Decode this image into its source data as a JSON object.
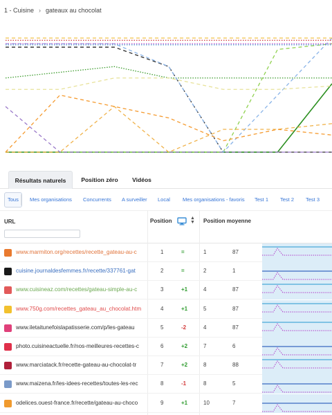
{
  "breadcrumb": {
    "category": "1 - Cuisine",
    "separator": "›",
    "keyword": "gateaux au chocolat"
  },
  "chart_data": {
    "type": "line",
    "title": "",
    "xlabel": "",
    "ylabel": "",
    "x": [
      0,
      1,
      2,
      3,
      4,
      5,
      6
    ],
    "ylim": [
      100,
      0
    ],
    "legend": "none",
    "series": [
      {
        "color": "#2b2b2b",
        "dash": "dashed",
        "values": [
          8,
          8,
          8,
          25,
          100,
          100,
          100
        ]
      },
      {
        "color": "#3a9a2a",
        "dash": "dotted",
        "values": [
          35,
          30,
          25,
          35,
          35,
          35,
          35
        ]
      },
      {
        "color": "#2b8f1f",
        "dash": "solid",
        "values": [
          100,
          100,
          100,
          100,
          100,
          100,
          40
        ]
      },
      {
        "color": "#8fd14f",
        "dash": "dashed",
        "values": [
          100,
          100,
          100,
          100,
          100,
          10,
          5
        ]
      },
      {
        "color": "#8ab4e8",
        "dash": "dashed",
        "values": [
          5,
          5,
          5,
          25,
          100,
          50,
          0
        ]
      },
      {
        "color": "#f0b24a",
        "dash": "dashed",
        "values": [
          100,
          100,
          60,
          100,
          80,
          80,
          75
        ]
      },
      {
        "color": "#f59a2e",
        "dash": "dashed",
        "values": [
          100,
          50,
          60,
          70,
          90,
          80,
          85
        ]
      },
      {
        "color": "#9a79c9",
        "dash": "dashed",
        "values": [
          60,
          100,
          100,
          100,
          100,
          100,
          100
        ]
      },
      {
        "color": "#e8e29a",
        "dash": "dashed",
        "values": [
          45,
          45,
          35,
          35,
          45,
          45,
          42
        ]
      },
      {
        "color": "#d34a4a",
        "dash": "dotted",
        "values": [
          2,
          2,
          2,
          2,
          2,
          2,
          2
        ]
      },
      {
        "color": "#b04ac9",
        "dash": "dotted",
        "values": [
          5,
          5,
          5,
          5,
          5,
          5,
          5
        ]
      },
      {
        "color": "#f0c24a",
        "dash": "dashed",
        "values": [
          0,
          0,
          0,
          0,
          0,
          0,
          0
        ]
      },
      {
        "color": "#4a9ad3",
        "dash": "dotted",
        "values": [
          6,
          6,
          6,
          6,
          6,
          6,
          6
        ]
      }
    ]
  },
  "tabs": [
    {
      "label": "Résultats naturels",
      "active": true
    },
    {
      "label": "Position zéro",
      "active": false
    },
    {
      "label": "Vidéos",
      "active": false
    }
  ],
  "filters": [
    {
      "label": "Tous",
      "active": true
    },
    {
      "label": "Mes organisations"
    },
    {
      "label": "Concurrents"
    },
    {
      "label": "A surveiller"
    },
    {
      "label": "Local"
    },
    {
      "label": "Mes organisations - favoris"
    },
    {
      "label": "Test 1"
    },
    {
      "label": "Test 2"
    },
    {
      "label": "Test 3"
    }
  ],
  "table": {
    "url_header": "URL",
    "position_header": "Position",
    "device_icon": "desktop-icon",
    "sort_icon": "sort-icon",
    "avg_position_header": "Position moyenne",
    "colors": {
      "up": "#2e9b2e",
      "down": "#d33a3a",
      "neutral": "#2e9b2e"
    },
    "rows": [
      {
        "url": "www.marmiton.org/recettes/recette_gateau-au-c",
        "url_color": "#e0733a",
        "favicon": "marmiton-icon",
        "favicon_color": "#e97a2f",
        "position": "1",
        "change": "=",
        "change_type": "neutral",
        "avg": "1",
        "volume": "87",
        "spark": [
          0,
          0,
          0,
          0,
          0,
          0,
          0
        ]
      },
      {
        "url": "cuisine.journaldesfemmes.fr/recette/337761-gat",
        "url_color": "#3a6fc0",
        "favicon": "journaldesfemmes-icon",
        "favicon_color": "#1a1a1a",
        "position": "2",
        "change": "=",
        "change_type": "neutral",
        "avg": "2",
        "volume": "1",
        "spark": [
          1,
          1,
          1,
          1,
          1,
          1,
          1
        ]
      },
      {
        "url": "www.cuisineaz.com/recettes/gateau-simple-au-c",
        "url_color": "#6aa84f",
        "favicon": "cuisineaz-icon",
        "favicon_color": "#e25a5a",
        "position": "3",
        "change": "+1",
        "change_type": "up",
        "avg": "4",
        "volume": "87",
        "spark": [
          0,
          0,
          0,
          0,
          0,
          0,
          0
        ]
      },
      {
        "url": "www.750g.com/recettes_gateau_au_chocolat.htm",
        "url_color": "#e04a4a",
        "favicon": "750g-icon",
        "favicon_color": "#f2c12e",
        "position": "4",
        "change": "+1",
        "change_type": "up",
        "avg": "5",
        "volume": "87",
        "spark": [
          0,
          0,
          0,
          0,
          0,
          0,
          0
        ]
      },
      {
        "url": "www.iletaitunefoislapatisserie.com/p/les-gateau",
        "url_color": "#333333",
        "favicon": "patisserie-icon",
        "favicon_color": "#e0407a",
        "position": "5",
        "change": "-2",
        "change_type": "down",
        "avg": "4",
        "volume": "87",
        "spark": [
          0,
          0,
          0,
          0,
          0,
          0,
          0
        ]
      },
      {
        "url": "photo.cuisineactuelle.fr/nos-meilleures-recettes-c",
        "url_color": "#333333",
        "favicon": "cuisineactuelle-icon",
        "favicon_color": "#e0304a",
        "position": "6",
        "change": "+2",
        "change_type": "up",
        "avg": "7",
        "volume": "6",
        "spark": [
          1,
          1,
          1,
          1,
          1,
          1,
          1
        ]
      },
      {
        "url": "www.marciatack.fr/recette-gateau-au-chocolat-tr",
        "url_color": "#333333",
        "favicon": "marciatack-icon",
        "favicon_color": "#b0203a",
        "position": "7",
        "change": "+2",
        "change_type": "up",
        "avg": "8",
        "volume": "88",
        "spark": [
          0,
          0,
          0,
          0,
          0,
          0,
          0
        ]
      },
      {
        "url": "www.maizena.fr/les-idees-recettes/toutes-les-rec",
        "url_color": "#333333",
        "favicon": "maizena-icon",
        "favicon_color": "#7a9ac9",
        "position": "8",
        "change": "-1",
        "change_type": "down",
        "avg": "8",
        "volume": "5",
        "spark": [
          1,
          1,
          1,
          1,
          1,
          1,
          1
        ]
      },
      {
        "url": "odelices.ouest-france.fr/recette/gateau-au-choco",
        "url_color": "#333333",
        "favicon": "odelices-icon",
        "favicon_color": "#f09a2e",
        "position": "9",
        "change": "+1",
        "change_type": "up",
        "avg": "10",
        "volume": "7",
        "spark": [
          1,
          1,
          1,
          1,
          1,
          1,
          1
        ]
      }
    ]
  }
}
